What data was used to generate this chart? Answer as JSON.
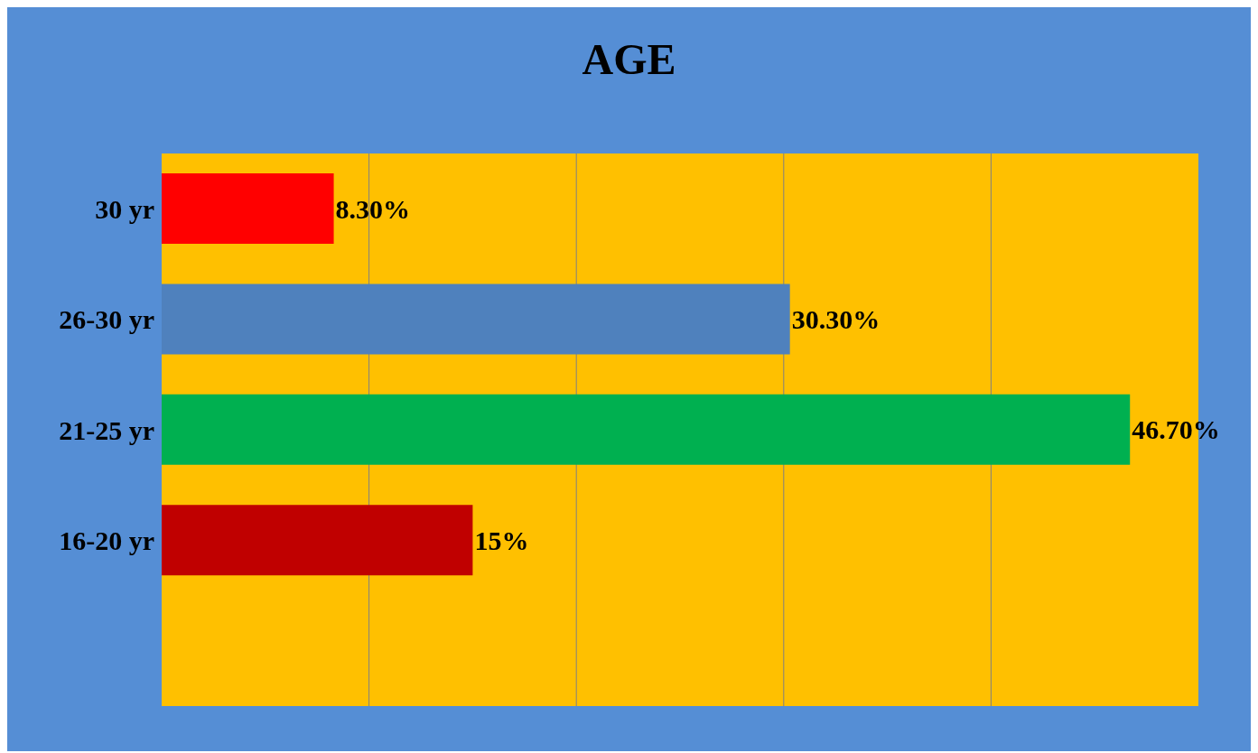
{
  "chart_data": {
    "type": "bar",
    "orientation": "horizontal",
    "title": "AGE",
    "categories": [
      "30 yr",
      "26-30 yr",
      "21-25 yr",
      "16-20 yr",
      null
    ],
    "values": [
      8.3,
      30.3,
      46.7,
      15,
      null
    ],
    "colors": [
      "#ff0000",
      "#4f81bd",
      "#00b050",
      "#c00000",
      "#c00000"
    ],
    "value_labels": [
      "8.30%",
      "30.30%",
      "46.70%",
      "15%",
      null
    ],
    "xlim": [
      0,
      50
    ],
    "xticks": [
      {
        "value": 0,
        "label": null
      },
      {
        "value": 10,
        "label": null
      },
      {
        "value": 20,
        "label": null
      },
      {
        "value": 30,
        "label": null
      },
      {
        "value": 40,
        "label": null
      },
      {
        "value": 50,
        "label": null
      }
    ],
    "tick_labels": "y",
    "grid": "x",
    "legend": false
  }
}
